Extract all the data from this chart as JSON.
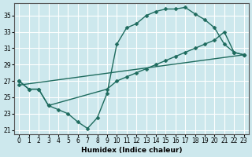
{
  "xlabel": "Humidex (Indice chaleur)",
  "ylabel": "",
  "xlim": [
    -0.5,
    23.5
  ],
  "ylim": [
    20.5,
    36.5
  ],
  "xticks": [
    0,
    1,
    2,
    3,
    4,
    5,
    6,
    7,
    8,
    9,
    10,
    11,
    12,
    13,
    14,
    15,
    16,
    17,
    18,
    19,
    20,
    21,
    22,
    23
  ],
  "yticks": [
    21,
    23,
    25,
    27,
    29,
    31,
    33,
    35
  ],
  "bg_color": "#cde8ed",
  "grid_color": "#ffffff",
  "line_color": "#1e6b5e",
  "line_width": 1.0,
  "marker": "D",
  "marker_size": 2.5,
  "lines": [
    {
      "x": [
        0,
        1,
        2,
        3,
        4,
        5,
        6,
        7,
        8,
        9,
        10,
        11,
        12,
        13,
        14,
        15,
        16,
        17,
        18,
        19,
        20,
        21,
        22,
        23
      ],
      "y": [
        27,
        26,
        26,
        24,
        23.5,
        23,
        22,
        21.2,
        22.5,
        25.5,
        31.5,
        33.5,
        34,
        35,
        35.5,
        35.8,
        35.8,
        36,
        35.2,
        34.5,
        33.5,
        31.5,
        30.5,
        30.2
      ]
    },
    {
      "x": [
        0,
        1,
        2,
        3,
        9,
        10,
        11,
        12,
        13,
        14,
        15,
        16,
        17,
        18,
        19,
        20,
        21,
        22,
        23
      ],
      "y": [
        27,
        26,
        26,
        24,
        26,
        27,
        27.5,
        28,
        28.5,
        29,
        29.5,
        30,
        30.5,
        31,
        31.5,
        32,
        33,
        30.5,
        30.2
      ]
    },
    {
      "x": [
        0,
        23
      ],
      "y": [
        26.5,
        30.2
      ]
    }
  ]
}
